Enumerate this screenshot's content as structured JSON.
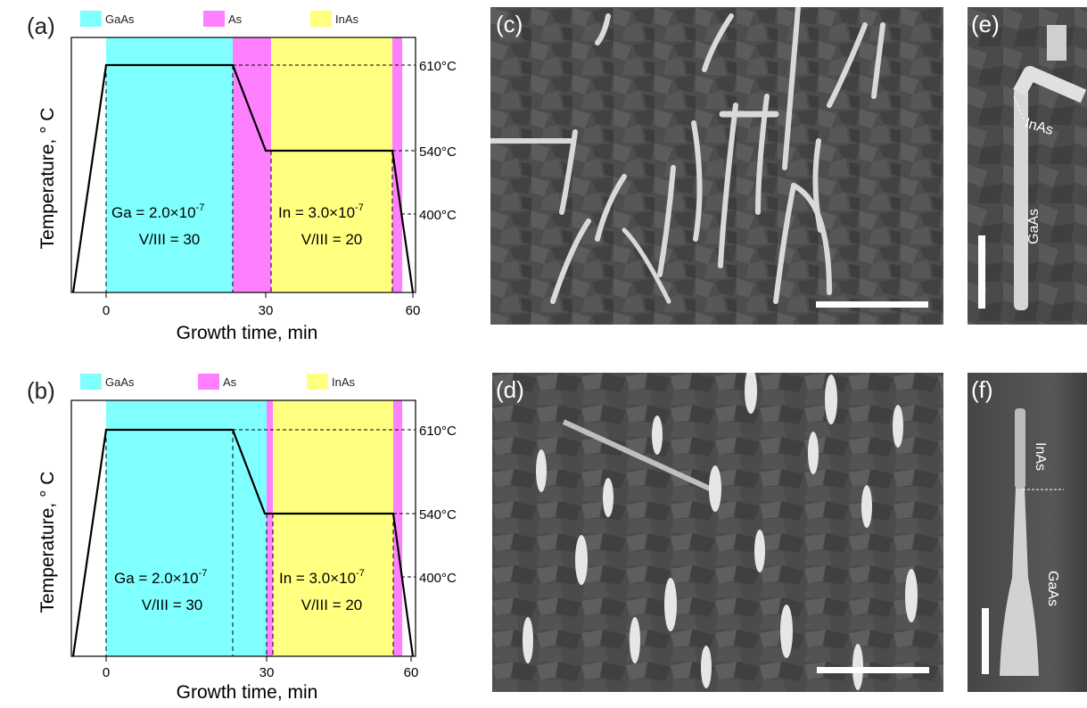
{
  "charts": {
    "a": {
      "letter": "(a)",
      "ylabel": "Temperature, ° C",
      "xlabel": "Growth time, min",
      "xticks": [
        "0",
        "30",
        "60"
      ],
      "temp_labels": [
        "610°C",
        "540°C",
        "400°C"
      ],
      "legend": [
        "GaAs",
        "As",
        "InAs"
      ],
      "ga_text": [
        "Ga = 2.0×10",
        "-7",
        "V/III = 30"
      ],
      "in_text": [
        "In = 3.0×10",
        "-7",
        "V/III = 20"
      ]
    },
    "b": {
      "letter": "(b)",
      "ylabel": "Temperature, ° C",
      "xlabel": "Growth time, min",
      "xticks": [
        "0",
        "30",
        "60"
      ],
      "temp_labels": [
        "610°C",
        "540°C",
        "400°C"
      ],
      "legend": [
        "GaAs",
        "As",
        "InAs"
      ],
      "ga_text": [
        "Ga = 2.0×10",
        "-7",
        "V/III = 30"
      ],
      "in_text": [
        "In = 3.0×10",
        "-7",
        "V/III = 20"
      ]
    }
  },
  "chart_data": [
    {
      "type": "line",
      "panel": "(a)",
      "xlabel": "Growth time, min",
      "ylabel": "Temperature, ° C",
      "xlim": [
        -6,
        61
      ],
      "x": [
        -6,
        0,
        24,
        30,
        56,
        61
      ],
      "y": [
        200,
        610,
        610,
        540,
        540,
        200
      ],
      "regions": [
        {
          "name": "GaAs",
          "from": 0,
          "to": 24,
          "color": "#80ffff"
        },
        {
          "name": "As",
          "from": 24,
          "to": 31,
          "color": "#ff80ff"
        },
        {
          "name": "InAs",
          "from": 31,
          "to": 57,
          "color": "#ffff80"
        },
        {
          "name": "As",
          "from": 57,
          "to": 59,
          "color": "#ff80ff"
        }
      ],
      "reference_levels": [
        "610°C",
        "540°C",
        "400°C"
      ]
    },
    {
      "type": "line",
      "panel": "(b)",
      "xlabel": "Growth time, min",
      "ylabel": "Temperature, ° C",
      "xlim": [
        -6,
        61
      ],
      "x": [
        -6,
        0,
        24,
        30,
        56,
        61
      ],
      "y": [
        200,
        610,
        610,
        540,
        540,
        200
      ],
      "regions": [
        {
          "name": "GaAs",
          "from": 0,
          "to": 30,
          "color": "#80ffff"
        },
        {
          "name": "As",
          "from": 30,
          "to": 31,
          "color": "#ff80ff"
        },
        {
          "name": "InAs",
          "from": 31,
          "to": 57,
          "color": "#ffff80"
        },
        {
          "name": "As",
          "from": 57,
          "to": 59,
          "color": "#ff80ff"
        }
      ],
      "reference_levels": [
        "610°C",
        "540°C",
        "400°C"
      ]
    }
  ],
  "sem": {
    "c": {
      "letter": "(c)"
    },
    "d": {
      "letter": "(d)"
    },
    "e": {
      "letter": "(e)",
      "top_label": "InAs",
      "bottom_label": "GaAs"
    },
    "f": {
      "letter": "(f)",
      "top_label": "InAs",
      "bottom_label": "GaAs"
    }
  }
}
